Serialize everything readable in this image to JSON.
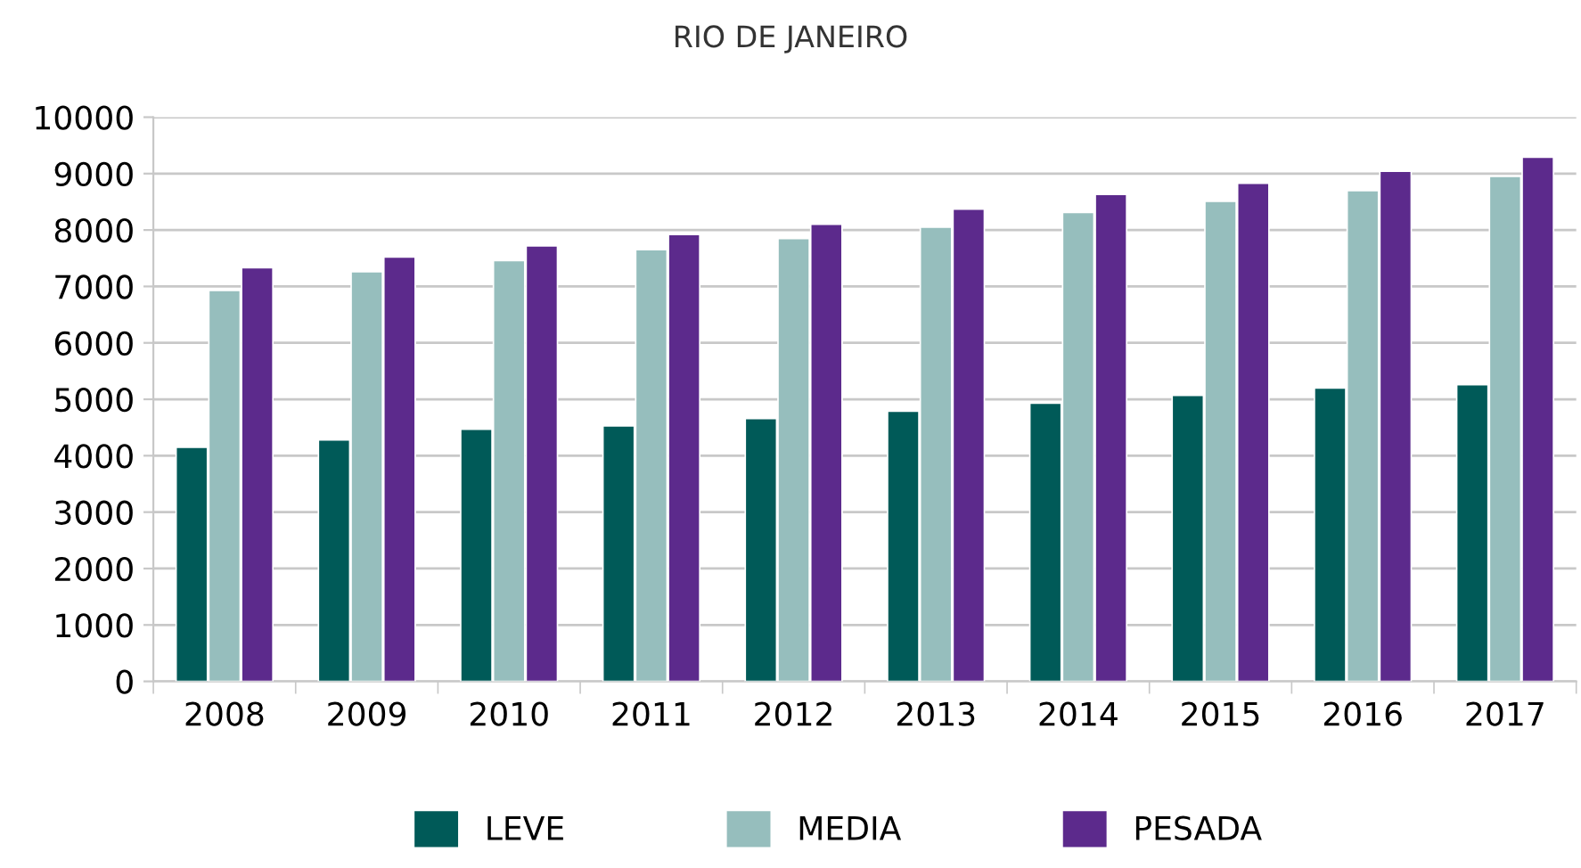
{
  "chart_data": {
    "type": "bar",
    "title": "RIO DE JANEIRO",
    "categories": [
      "2008",
      "2009",
      "2010",
      "2011",
      "2012",
      "2013",
      "2014",
      "2015",
      "2016",
      "2017"
    ],
    "series": [
      {
        "name": "LEVE",
        "color": "#005a58",
        "values": [
          4150,
          4280,
          4470,
          4530,
          4660,
          4790,
          4930,
          5070,
          5200,
          5260
        ]
      },
      {
        "name": "MEDIA",
        "color": "#96bebd",
        "values": [
          6930,
          7260,
          7460,
          7650,
          7850,
          8050,
          8310,
          8510,
          8700,
          8950
        ]
      },
      {
        "name": "PESADA",
        "color": "#5c2a8c",
        "values": [
          7330,
          7520,
          7720,
          7920,
          8100,
          8370,
          8630,
          8830,
          9040,
          9290
        ]
      }
    ],
    "ylim": [
      0,
      10000
    ],
    "yticks": [
      0,
      1000,
      2000,
      3000,
      4000,
      5000,
      6000,
      7000,
      8000,
      9000,
      10000
    ],
    "grid": "y",
    "legend": "bottom"
  }
}
